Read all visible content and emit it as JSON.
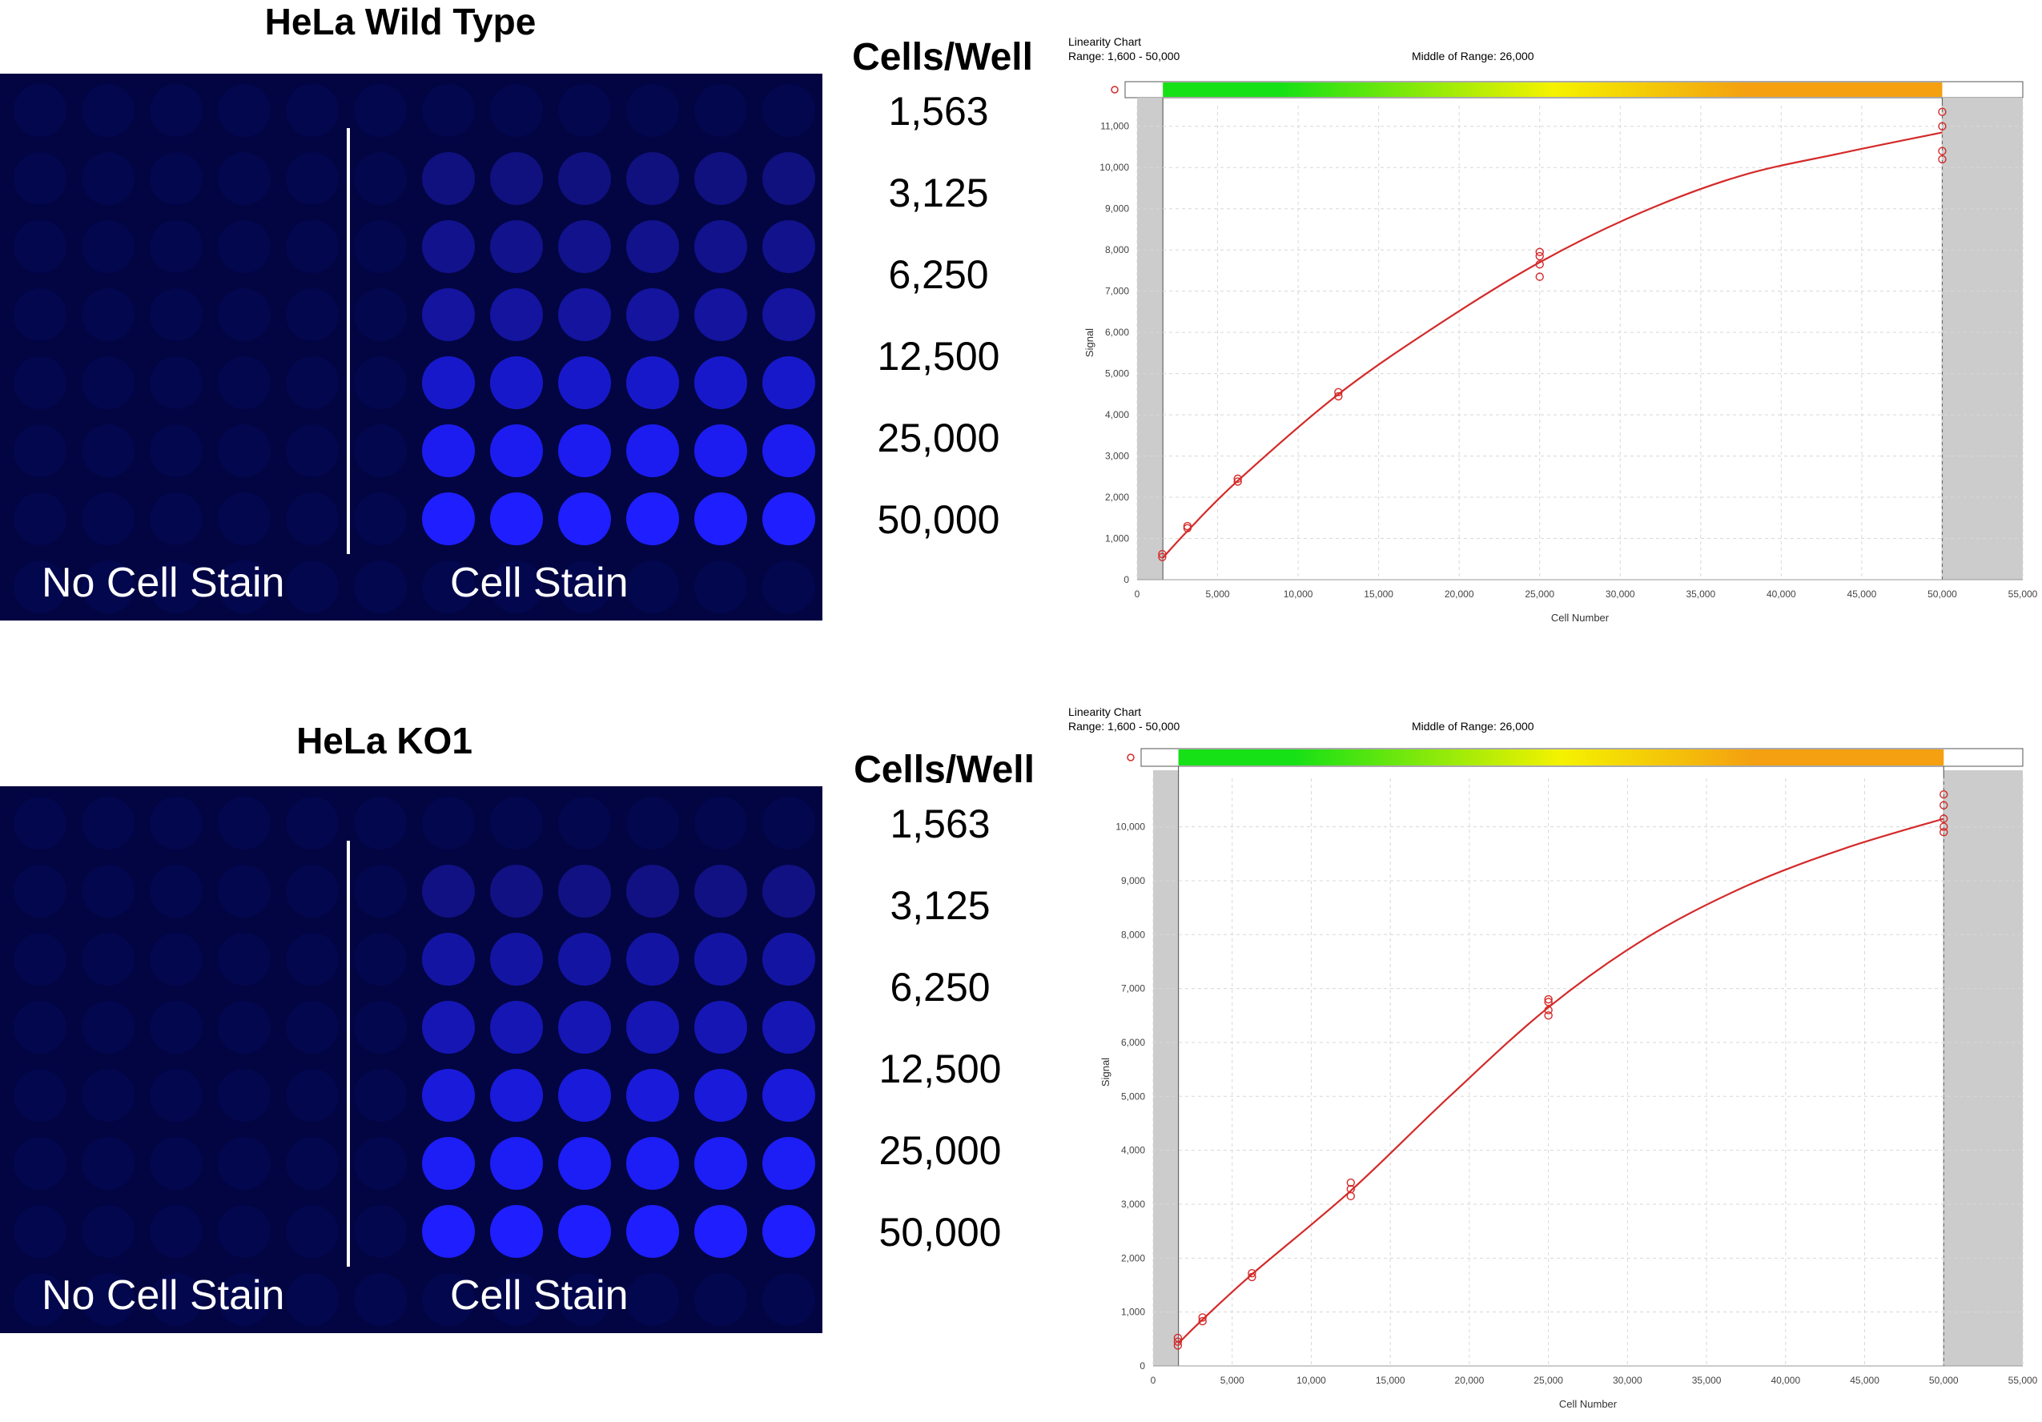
{
  "panels": [
    {
      "title": "HeLa Wild Type",
      "no_stain_label": "No Cell Stain",
      "stain_label": "Cell Stain",
      "cells_header": "Cells/Well",
      "cells": [
        "1,563",
        "3,125",
        "6,250",
        "12,500",
        "25,000",
        "50,000"
      ],
      "well_intensity": [
        0.3,
        0.38,
        0.48,
        0.72,
        0.92,
        1.0
      ]
    },
    {
      "title": "HeLa KO1",
      "no_stain_label": "No Cell Stain",
      "stain_label": "Cell Stain",
      "cells_header": "Cells/Well",
      "cells": [
        "1,563",
        "3,125",
        "6,250",
        "12,500",
        "25,000",
        "50,000"
      ],
      "well_intensity": [
        0.33,
        0.5,
        0.6,
        0.8,
        0.95,
        1.0
      ]
    }
  ],
  "colors": {
    "plate_bg": "#020541",
    "well_bright": "#1a1aff",
    "curve": "#d42a2a",
    "shade": "#cccccc",
    "grad_green": "#16e016",
    "grad_yellow": "#f5f200",
    "grad_orange": "#f4a010"
  },
  "chart_data": [
    {
      "type": "scatter",
      "title": "Linearity Chart",
      "range_text": "Range: 1,600  - 50,000",
      "middle_text": "Middle of Range: 26,000",
      "xlabel": "Cell Number",
      "ylabel": "Signal",
      "xlim": [
        0,
        55000
      ],
      "ylim": [
        0,
        11500
      ],
      "xticks": [
        0,
        5000,
        10000,
        15000,
        20000,
        25000,
        30000,
        35000,
        40000,
        45000,
        50000,
        55000
      ],
      "xtick_labels": [
        "0",
        "5,000",
        "10,000",
        "15,000",
        "20,000",
        "25,000",
        "30,000",
        "35,000",
        "40,000",
        "45,000",
        "50,000",
        "55,000"
      ],
      "yticks": [
        0,
        1000,
        2000,
        3000,
        4000,
        5000,
        6000,
        7000,
        8000,
        9000,
        10000,
        11000
      ],
      "ytick_labels": [
        "0",
        "1,000",
        "2,000",
        "3,000",
        "4,000",
        "5,000",
        "6,000",
        "7,000",
        "8,000",
        "9,000",
        "10,000",
        "11,000"
      ],
      "range": [
        1600,
        50000
      ],
      "points": [
        {
          "x": 1563,
          "y": 550
        },
        {
          "x": 1563,
          "y": 620
        },
        {
          "x": 3125,
          "y": 1250
        },
        {
          "x": 3125,
          "y": 1300
        },
        {
          "x": 6250,
          "y": 2380
        },
        {
          "x": 6250,
          "y": 2450
        },
        {
          "x": 12500,
          "y": 4450
        },
        {
          "x": 12500,
          "y": 4550
        },
        {
          "x": 25000,
          "y": 7350
        },
        {
          "x": 25000,
          "y": 7650
        },
        {
          "x": 25000,
          "y": 7850
        },
        {
          "x": 25000,
          "y": 7950
        },
        {
          "x": 50000,
          "y": 10200
        },
        {
          "x": 50000,
          "y": 10400
        },
        {
          "x": 50000,
          "y": 11000
        },
        {
          "x": 50000,
          "y": 11350
        }
      ],
      "fit": [
        {
          "x": 1600,
          "y": 530
        },
        {
          "x": 3125,
          "y": 1180
        },
        {
          "x": 6250,
          "y": 2400
        },
        {
          "x": 12500,
          "y": 4500
        },
        {
          "x": 18750,
          "y": 6200
        },
        {
          "x": 25000,
          "y": 7700
        },
        {
          "x": 31250,
          "y": 8900
        },
        {
          "x": 37500,
          "y": 9800
        },
        {
          "x": 43750,
          "y": 10350
        },
        {
          "x": 50000,
          "y": 10850
        }
      ]
    },
    {
      "type": "scatter",
      "title": "Linearity Chart",
      "range_text": "Range: 1,600  - 50,000",
      "middle_text": "Middle of Range: 26,000",
      "xlabel": "Cell Number",
      "ylabel": "Signal",
      "xlim": [
        0,
        55000
      ],
      "ylim": [
        0,
        10900
      ],
      "xticks": [
        0,
        5000,
        10000,
        15000,
        20000,
        25000,
        30000,
        35000,
        40000,
        45000,
        50000,
        55000
      ],
      "xtick_labels": [
        "0",
        "5,000",
        "10,000",
        "15,000",
        "20,000",
        "25,000",
        "30,000",
        "35,000",
        "40,000",
        "45,000",
        "50,000",
        "55,000"
      ],
      "yticks": [
        0,
        1000,
        2000,
        3000,
        4000,
        5000,
        6000,
        7000,
        8000,
        9000,
        10000
      ],
      "ytick_labels": [
        "0",
        "1,000",
        "2,000",
        "3,000",
        "4,000",
        "5,000",
        "6,000",
        "7,000",
        "8,000",
        "9,000",
        "10,000"
      ],
      "range": [
        1600,
        50000
      ],
      "points": [
        {
          "x": 1563,
          "y": 380
        },
        {
          "x": 1563,
          "y": 450
        },
        {
          "x": 1563,
          "y": 520
        },
        {
          "x": 3125,
          "y": 830
        },
        {
          "x": 3125,
          "y": 900
        },
        {
          "x": 6250,
          "y": 1650
        },
        {
          "x": 6250,
          "y": 1720
        },
        {
          "x": 12500,
          "y": 3150
        },
        {
          "x": 12500,
          "y": 3280
        },
        {
          "x": 12500,
          "y": 3400
        },
        {
          "x": 25000,
          "y": 6500
        },
        {
          "x": 25000,
          "y": 6600
        },
        {
          "x": 25000,
          "y": 6750
        },
        {
          "x": 25000,
          "y": 6800
        },
        {
          "x": 50000,
          "y": 9900
        },
        {
          "x": 50000,
          "y": 10000
        },
        {
          "x": 50000,
          "y": 10150
        },
        {
          "x": 50000,
          "y": 10400
        },
        {
          "x": 50000,
          "y": 10600
        }
      ],
      "fit": [
        {
          "x": 1600,
          "y": 420
        },
        {
          "x": 3125,
          "y": 860
        },
        {
          "x": 6250,
          "y": 1700
        },
        {
          "x": 12500,
          "y": 3250
        },
        {
          "x": 18750,
          "y": 5000
        },
        {
          "x": 25000,
          "y": 6650
        },
        {
          "x": 31250,
          "y": 7950
        },
        {
          "x": 37500,
          "y": 8900
        },
        {
          "x": 43750,
          "y": 9600
        },
        {
          "x": 50000,
          "y": 10150
        }
      ]
    }
  ]
}
